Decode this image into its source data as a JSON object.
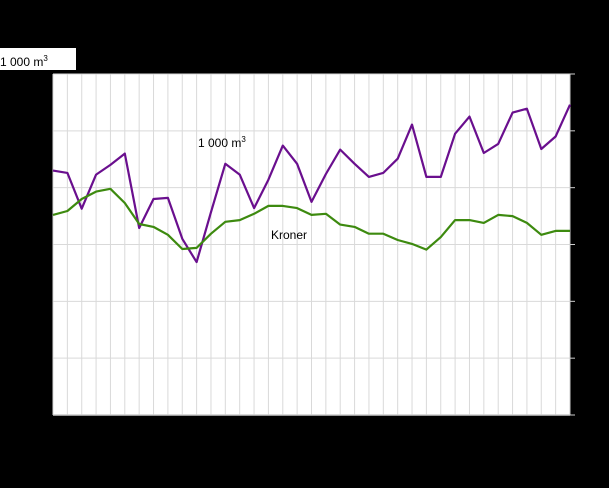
{
  "unit_box": {
    "text": "1 000 m",
    "sup": "3"
  },
  "chart_data": {
    "type": "line",
    "title": "",
    "xlabel": "",
    "ylabel": "1 000 m3",
    "grid": true,
    "legend_position": "inline",
    "x": [
      1,
      2,
      3,
      4,
      5,
      6,
      7,
      8,
      9,
      10,
      11,
      12,
      13,
      14,
      15,
      16,
      17,
      18,
      19,
      20,
      21,
      22,
      23,
      24,
      25,
      26,
      27,
      28,
      29,
      30,
      31,
      32,
      33,
      34,
      35,
      36,
      37
    ],
    "ylim": [
      0,
      6
    ],
    "y_gridlines": [
      0,
      1,
      2,
      3,
      4,
      5,
      6
    ],
    "series": [
      {
        "name": "1 000 m3",
        "label_text": "1 000 m",
        "label_sup": "3",
        "color": "#6a0f8e",
        "values": [
          4.3,
          4.26,
          3.63,
          4.23,
          4.4,
          4.6,
          3.29,
          3.8,
          3.82,
          3.1,
          2.69,
          3.57,
          4.42,
          4.23,
          3.64,
          4.14,
          4.74,
          4.42,
          3.75,
          4.24,
          4.67,
          4.42,
          4.19,
          4.26,
          4.51,
          5.11,
          4.19,
          4.19,
          4.95,
          5.25,
          4.61,
          4.77,
          5.32,
          5.39,
          4.68,
          4.9,
          5.46
        ]
      },
      {
        "name": "Kroner",
        "label_text": "Kroner",
        "color": "#3d8a0f",
        "values": [
          3.52,
          3.59,
          3.8,
          3.93,
          3.98,
          3.73,
          3.36,
          3.31,
          3.17,
          2.92,
          2.94,
          3.19,
          3.4,
          3.43,
          3.54,
          3.68,
          3.68,
          3.64,
          3.52,
          3.54,
          3.35,
          3.31,
          3.19,
          3.19,
          3.08,
          3.01,
          2.91,
          3.13,
          3.43,
          3.43,
          3.38,
          3.52,
          3.5,
          3.38,
          3.17,
          3.24,
          3.24
        ]
      }
    ]
  }
}
